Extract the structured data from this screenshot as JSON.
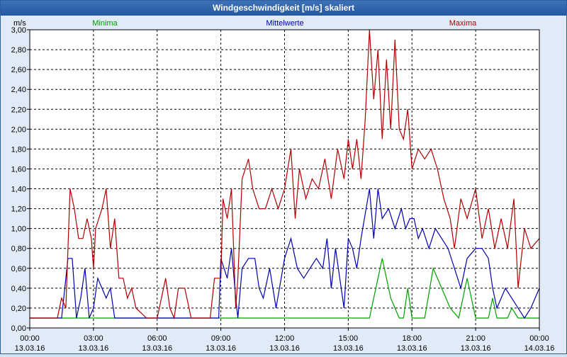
{
  "window": {
    "title": "Windgeschwindigkeit [m/s] skaliert"
  },
  "chart_data": {
    "type": "line",
    "title": "Windgeschwindigkeit [m/s] skaliert",
    "ylabel": "m/s",
    "ylim": [
      0,
      3.0
    ],
    "xlim": [
      0,
      24
    ],
    "grid": true,
    "legend_placement": "top",
    "y_ticks": [
      "0,00",
      "0,20",
      "0,40",
      "0,60",
      "0,80",
      "1,00",
      "1,20",
      "1,40",
      "1,60",
      "1,80",
      "2,00",
      "2,20",
      "2,40",
      "2,60",
      "2,80",
      "3,00"
    ],
    "x_ticks": [
      {
        "time": "00:00",
        "date": "13.03.16"
      },
      {
        "time": "03:00",
        "date": "13.03.16"
      },
      {
        "time": "06:00",
        "date": "13.03.16"
      },
      {
        "time": "09:00",
        "date": "13.03.16"
      },
      {
        "time": "12:00",
        "date": "13.03.16"
      },
      {
        "time": "15:00",
        "date": "13.03.16"
      },
      {
        "time": "18:00",
        "date": "13.03.16"
      },
      {
        "time": "21:00",
        "date": "13.03.16"
      },
      {
        "time": "00:00",
        "date": "14.03.16"
      }
    ],
    "series": [
      {
        "name": "Minima",
        "color": "#00a000",
        "points": [
          [
            0,
            0.1
          ],
          [
            16.0,
            0.1
          ],
          [
            16.3,
            0.4
          ],
          [
            16.6,
            0.7
          ],
          [
            17.0,
            0.3
          ],
          [
            17.4,
            0.1
          ],
          [
            17.6,
            0.1
          ],
          [
            17.8,
            0.4
          ],
          [
            18.0,
            0.1
          ],
          [
            18.6,
            0.1
          ],
          [
            19.0,
            0.6
          ],
          [
            19.4,
            0.4
          ],
          [
            19.8,
            0.2
          ],
          [
            20.2,
            0.1
          ],
          [
            20.6,
            0.5
          ],
          [
            21.0,
            0.1
          ],
          [
            21.6,
            0.1
          ],
          [
            21.8,
            0.3
          ],
          [
            22.0,
            0.1
          ],
          [
            22.5,
            0.1
          ],
          [
            22.7,
            0.2
          ],
          [
            23.0,
            0.1
          ],
          [
            24,
            0.1
          ]
        ]
      },
      {
        "name": "Mittelwerte",
        "color": "#0000b0",
        "points": [
          [
            0,
            0.1
          ],
          [
            1.5,
            0.1
          ],
          [
            1.8,
            0.7
          ],
          [
            2.0,
            0.7
          ],
          [
            2.2,
            0.1
          ],
          [
            2.4,
            0.3
          ],
          [
            2.6,
            0.6
          ],
          [
            2.8,
            0.1
          ],
          [
            3.0,
            0.2
          ],
          [
            3.2,
            0.5
          ],
          [
            3.4,
            0.4
          ],
          [
            3.6,
            0.3
          ],
          [
            3.8,
            0.4
          ],
          [
            4.0,
            0.1
          ],
          [
            4.5,
            0.1
          ],
          [
            5.0,
            0.1
          ],
          [
            8.9,
            0.1
          ],
          [
            9.0,
            0.7
          ],
          [
            9.3,
            0.5
          ],
          [
            9.5,
            0.8
          ],
          [
            9.7,
            0.3
          ],
          [
            9.8,
            0.1
          ],
          [
            10.0,
            0.6
          ],
          [
            10.3,
            0.7
          ],
          [
            10.6,
            0.7
          ],
          [
            10.8,
            0.4
          ],
          [
            11.0,
            0.3
          ],
          [
            11.3,
            0.6
          ],
          [
            11.6,
            0.2
          ],
          [
            12.0,
            0.7
          ],
          [
            12.3,
            0.9
          ],
          [
            12.6,
            0.6
          ],
          [
            12.9,
            0.5
          ],
          [
            13.2,
            0.6
          ],
          [
            13.5,
            0.7
          ],
          [
            13.8,
            0.6
          ],
          [
            14.0,
            0.9
          ],
          [
            14.2,
            0.4
          ],
          [
            14.4,
            0.8
          ],
          [
            14.6,
            0.5
          ],
          [
            14.8,
            0.2
          ],
          [
            15.0,
            0.9
          ],
          [
            15.2,
            0.8
          ],
          [
            15.4,
            0.6
          ],
          [
            15.6,
            0.9
          ],
          [
            16.0,
            1.4
          ],
          [
            16.2,
            0.9
          ],
          [
            16.4,
            1.4
          ],
          [
            16.6,
            1.1
          ],
          [
            16.9,
            1.2
          ],
          [
            17.2,
            1.0
          ],
          [
            17.5,
            1.2
          ],
          [
            17.7,
            1.0
          ],
          [
            17.9,
            1.1
          ],
          [
            18.1,
            1.1
          ],
          [
            18.3,
            0.9
          ],
          [
            18.5,
            1.0
          ],
          [
            18.8,
            0.8
          ],
          [
            19.1,
            1.0
          ],
          [
            19.4,
            0.9
          ],
          [
            19.7,
            0.8
          ],
          [
            20.0,
            0.6
          ],
          [
            20.3,
            0.4
          ],
          [
            20.6,
            0.7
          ],
          [
            21.0,
            0.8
          ],
          [
            21.3,
            0.8
          ],
          [
            21.6,
            0.7
          ],
          [
            21.8,
            0.4
          ],
          [
            22.0,
            0.2
          ],
          [
            22.4,
            0.4
          ],
          [
            22.7,
            0.3
          ],
          [
            23.0,
            0.2
          ],
          [
            23.3,
            0.1
          ],
          [
            23.6,
            0.2
          ],
          [
            24,
            0.4
          ]
        ]
      },
      {
        "name": "Maxima",
        "color": "#b00000",
        "points": [
          [
            0,
            0.1
          ],
          [
            1.3,
            0.1
          ],
          [
            1.5,
            0.3
          ],
          [
            1.7,
            0.2
          ],
          [
            1.9,
            1.4
          ],
          [
            2.1,
            1.2
          ],
          [
            2.3,
            0.9
          ],
          [
            2.5,
            0.9
          ],
          [
            2.7,
            1.1
          ],
          [
            2.9,
            0.9
          ],
          [
            3.0,
            0.6
          ],
          [
            3.1,
            1.0
          ],
          [
            3.4,
            1.2
          ],
          [
            3.6,
            1.4
          ],
          [
            3.8,
            0.8
          ],
          [
            4.0,
            1.1
          ],
          [
            4.2,
            0.5
          ],
          [
            4.4,
            0.5
          ],
          [
            4.6,
            0.3
          ],
          [
            4.8,
            0.4
          ],
          [
            5.0,
            0.2
          ],
          [
            5.5,
            0.1
          ],
          [
            6.0,
            0.1
          ],
          [
            6.4,
            0.5
          ],
          [
            6.6,
            0.2
          ],
          [
            6.8,
            0.1
          ],
          [
            7.0,
            0.4
          ],
          [
            7.3,
            0.4
          ],
          [
            7.6,
            0.1
          ],
          [
            8.5,
            0.1
          ],
          [
            8.7,
            0.5
          ],
          [
            9.0,
            0.5
          ],
          [
            9.1,
            1.3
          ],
          [
            9.3,
            1.1
          ],
          [
            9.5,
            1.4
          ],
          [
            9.7,
            0.2
          ],
          [
            9.8,
            0.5
          ],
          [
            10.0,
            1.5
          ],
          [
            10.3,
            1.7
          ],
          [
            10.5,
            1.4
          ],
          [
            10.8,
            1.2
          ],
          [
            11.1,
            1.2
          ],
          [
            11.4,
            1.4
          ],
          [
            11.7,
            1.2
          ],
          [
            12.0,
            1.4
          ],
          [
            12.3,
            1.8
          ],
          [
            12.5,
            1.1
          ],
          [
            12.7,
            1.6
          ],
          [
            13.0,
            1.3
          ],
          [
            13.3,
            1.5
          ],
          [
            13.6,
            1.4
          ],
          [
            13.9,
            1.7
          ],
          [
            14.2,
            1.3
          ],
          [
            14.5,
            1.8
          ],
          [
            14.8,
            1.5
          ],
          [
            15.0,
            1.9
          ],
          [
            15.2,
            1.6
          ],
          [
            15.4,
            1.9
          ],
          [
            15.6,
            1.5
          ],
          [
            15.8,
            2.1
          ],
          [
            16.0,
            3.0
          ],
          [
            16.2,
            2.3
          ],
          [
            16.4,
            2.8
          ],
          [
            16.6,
            1.9
          ],
          [
            16.8,
            2.7
          ],
          [
            17.0,
            2.0
          ],
          [
            17.2,
            2.9
          ],
          [
            17.4,
            2.0
          ],
          [
            17.6,
            1.9
          ],
          [
            17.8,
            2.2
          ],
          [
            18.0,
            1.6
          ],
          [
            18.3,
            1.8
          ],
          [
            18.6,
            1.7
          ],
          [
            18.9,
            1.8
          ],
          [
            19.2,
            1.6
          ],
          [
            19.5,
            1.3
          ],
          [
            19.8,
            1.1
          ],
          [
            20.0,
            0.8
          ],
          [
            20.3,
            1.3
          ],
          [
            20.6,
            1.1
          ],
          [
            21.0,
            1.4
          ],
          [
            21.3,
            0.9
          ],
          [
            21.6,
            1.2
          ],
          [
            21.9,
            0.8
          ],
          [
            22.2,
            1.1
          ],
          [
            22.5,
            0.8
          ],
          [
            22.8,
            1.3
          ],
          [
            23.0,
            0.4
          ],
          [
            23.3,
            1.0
          ],
          [
            23.6,
            0.8
          ],
          [
            24,
            0.9
          ]
        ]
      }
    ]
  }
}
